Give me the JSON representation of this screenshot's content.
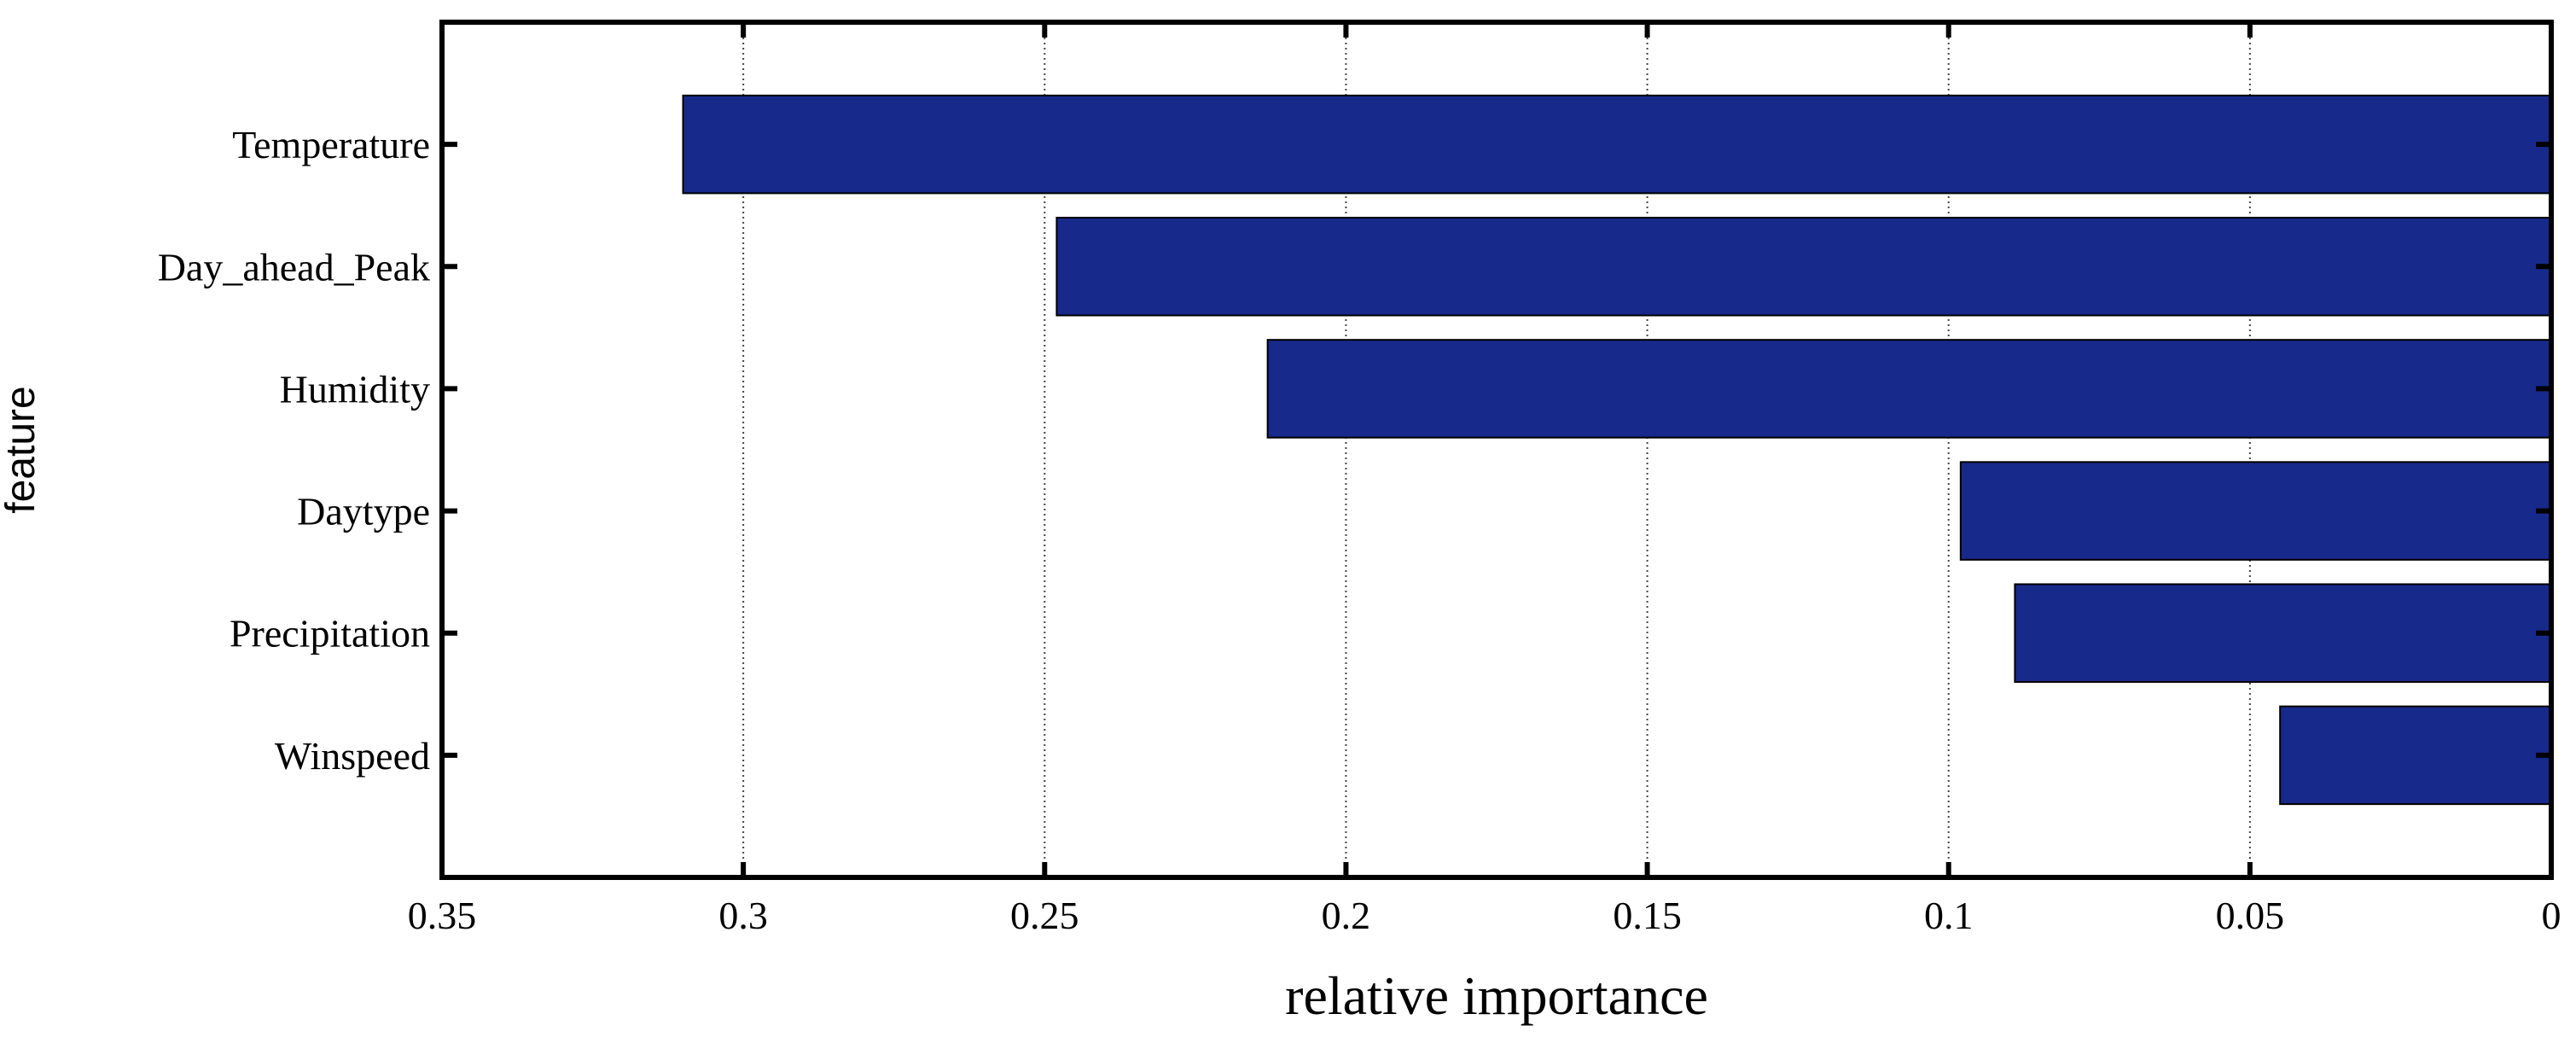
{
  "chart_data": {
    "type": "bar",
    "orientation": "horizontal",
    "x_axis_reversed": true,
    "categories": [
      "Temperature",
      "Day_ahead_Peak",
      "Humidity",
      "Daytype",
      "Precipitation",
      "Winspeed"
    ],
    "values": [
      0.31,
      0.248,
      0.213,
      0.098,
      0.089,
      0.045
    ],
    "xlabel": "relative importance",
    "ylabel": "feature",
    "xlim": [
      0,
      0.35
    ],
    "x_ticks": [
      0.35,
      0.3,
      0.25,
      0.2,
      0.15,
      0.1,
      0.05,
      0
    ],
    "x_tick_labels": [
      "0.35",
      "0.3",
      "0.25",
      "0.2",
      "0.15",
      "0.1",
      "0.05",
      "0"
    ],
    "grid": "vertical-dotted",
    "bar_color": "#172a8b"
  }
}
